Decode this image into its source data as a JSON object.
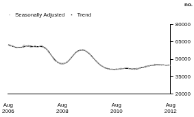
{
  "chart_data": {
    "type": "line",
    "y_label": "no.",
    "categories": [
      "Aug 2006",
      null,
      null,
      null,
      null,
      null,
      null,
      null,
      null,
      null,
      null,
      null,
      null,
      null,
      null,
      null,
      null,
      null,
      null,
      null,
      null,
      null,
      null,
      null,
      "Aug 2008",
      null,
      null,
      null,
      null,
      null,
      null,
      null,
      null,
      null,
      null,
      null,
      null,
      null,
      null,
      null,
      null,
      null,
      null,
      null,
      null,
      null,
      null,
      null,
      "Aug 2010",
      null,
      null,
      null,
      null,
      null,
      null,
      null,
      null,
      null,
      null,
      null,
      null,
      null,
      null,
      null,
      null,
      null,
      null,
      null,
      null,
      null,
      null,
      null,
      "Aug 2012"
    ],
    "series": [
      {
        "name": "Trend",
        "color": "#000000",
        "values": [
          62500,
          62000,
          61300,
          60600,
          60200,
          60100,
          60400,
          60900,
          61300,
          61400,
          61300,
          61100,
          61000,
          61000,
          61100,
          61000,
          60300,
          58800,
          56500,
          53800,
          51200,
          49000,
          47400,
          46500,
          46200,
          46500,
          47500,
          49200,
          51400,
          53800,
          55800,
          57200,
          57900,
          58000,
          57500,
          56400,
          54800,
          52800,
          50600,
          48500,
          46600,
          45000,
          43700,
          42700,
          42000,
          41600,
          41400,
          41300,
          41400,
          41600,
          41900,
          42100,
          42200,
          42200,
          42000,
          41800,
          41700,
          41800,
          42200,
          42700,
          43200,
          43700,
          44100,
          44500,
          44800,
          45100,
          45300,
          45300,
          45200,
          45100,
          45000,
          45000,
          45100
        ]
      },
      {
        "name": "Seasonally Adjusted",
        "color": "#b0b0b0",
        "values": [
          62300,
          61500,
          61800,
          60200,
          59800,
          60500,
          60000,
          62300,
          61000,
          62000,
          60200,
          60800,
          61800,
          60300,
          61400,
          61800,
          59600,
          59300,
          55800,
          54200,
          50600,
          48300,
          47900,
          46000,
          46600,
          46100,
          47900,
          48700,
          51900,
          53300,
          56400,
          56700,
          58300,
          57600,
          57900,
          56000,
          55300,
          52300,
          50900,
          48100,
          47000,
          44500,
          44100,
          42300,
          42400,
          41200,
          41800,
          40900,
          41900,
          41300,
          42400,
          41800,
          42600,
          42700,
          41600,
          42200,
          41200,
          42300,
          41900,
          43300,
          42900,
          44200,
          43800,
          44900,
          44500,
          45700,
          45000,
          45600,
          44900,
          45300,
          44700,
          45300,
          44900
        ]
      }
    ],
    "ylim": [
      20000,
      80000
    ],
    "yticks": [
      20000,
      35000,
      50000,
      65000,
      80000
    ],
    "grid": false,
    "legend": "upper left"
  }
}
